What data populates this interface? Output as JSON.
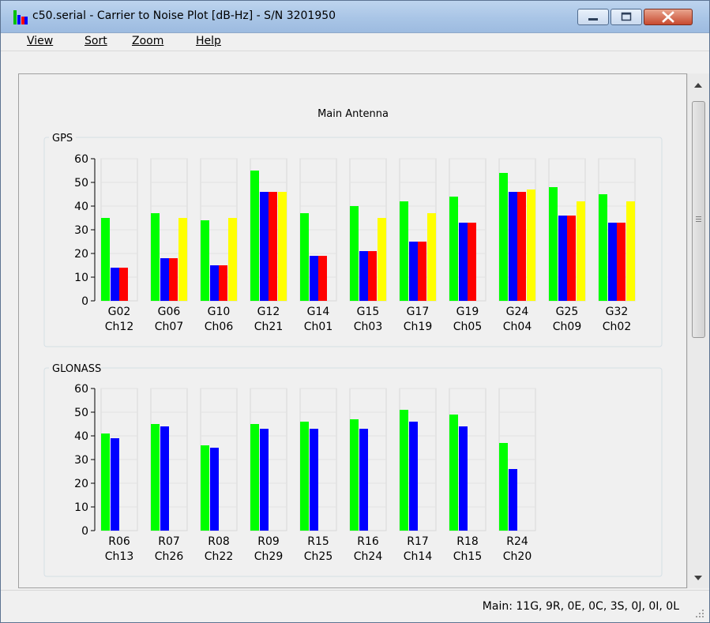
{
  "window": {
    "title": "c50.serial - Carrier to Noise Plot [dB-Hz] - S/N 3201950"
  },
  "menu": [
    {
      "label": "View"
    },
    {
      "label": "Sort"
    },
    {
      "label": "Zoom"
    },
    {
      "label": "Help"
    }
  ],
  "main": {
    "title": "Main Antenna"
  },
  "status": {
    "text": "Main: 11G, 9R, 0E, 0C, 3S, 0J, 0I, 0L"
  },
  "colors": {
    "green": "#00ff00",
    "blue": "#0000ff",
    "red": "#ff0000",
    "yellow": "#ffff00"
  },
  "chart_data": [
    {
      "type": "bar",
      "title": "GPS",
      "ylim": [
        0,
        60
      ],
      "yticks": [
        0,
        10,
        20,
        30,
        40,
        50,
        60
      ],
      "grid": true,
      "categories": [
        "G02 Ch12",
        "G06 Ch07",
        "G10 Ch06",
        "G12 Ch21",
        "G14 Ch01",
        "G15 Ch03",
        "G17 Ch19",
        "G19 Ch05",
        "G24 Ch04",
        "G25 Ch09",
        "G32 Ch02"
      ],
      "labels": [
        [
          "G02",
          "Ch12"
        ],
        [
          "G06",
          "Ch07"
        ],
        [
          "G10",
          "Ch06"
        ],
        [
          "G12",
          "Ch21"
        ],
        [
          "G14",
          "Ch01"
        ],
        [
          "G15",
          "Ch03"
        ],
        [
          "G17",
          "Ch19"
        ],
        [
          "G19",
          "Ch05"
        ],
        [
          "G24",
          "Ch04"
        ],
        [
          "G25",
          "Ch09"
        ],
        [
          "G32",
          "Ch02"
        ]
      ],
      "series": [
        {
          "color": "#00ff00",
          "values": [
            35,
            37,
            34,
            55,
            37,
            40,
            42,
            44,
            54,
            48,
            45
          ]
        },
        {
          "color": "#0000ff",
          "values": [
            14,
            18,
            15,
            46,
            19,
            21,
            25,
            33,
            46,
            36,
            33
          ]
        },
        {
          "color": "#ff0000",
          "values": [
            14,
            18,
            15,
            46,
            19,
            21,
            25,
            33,
            46,
            36,
            33
          ]
        },
        {
          "color": "#ffff00",
          "values": [
            0,
            35,
            35,
            46,
            0,
            35,
            37,
            0,
            47,
            42,
            42
          ]
        }
      ]
    },
    {
      "type": "bar",
      "title": "GLONASS",
      "ylim": [
        0,
        60
      ],
      "yticks": [
        0,
        10,
        20,
        30,
        40,
        50,
        60
      ],
      "grid": true,
      "categories": [
        "R06 Ch13",
        "R07 Ch26",
        "R08 Ch22",
        "R09 Ch29",
        "R15 Ch25",
        "R16 Ch24",
        "R17 Ch14",
        "R18 Ch15",
        "R24 Ch20"
      ],
      "labels": [
        [
          "R06",
          "Ch13"
        ],
        [
          "R07",
          "Ch26"
        ],
        [
          "R08",
          "Ch22"
        ],
        [
          "R09",
          "Ch29"
        ],
        [
          "R15",
          "Ch25"
        ],
        [
          "R16",
          "Ch24"
        ],
        [
          "R17",
          "Ch14"
        ],
        [
          "R18",
          "Ch15"
        ],
        [
          "R24",
          "Ch20"
        ]
      ],
      "series": [
        {
          "color": "#00ff00",
          "values": [
            41,
            45,
            36,
            45,
            46,
            47,
            51,
            49,
            37
          ]
        },
        {
          "color": "#0000ff",
          "values": [
            39,
            44,
            35,
            43,
            43,
            43,
            46,
            44,
            26
          ]
        }
      ]
    }
  ]
}
